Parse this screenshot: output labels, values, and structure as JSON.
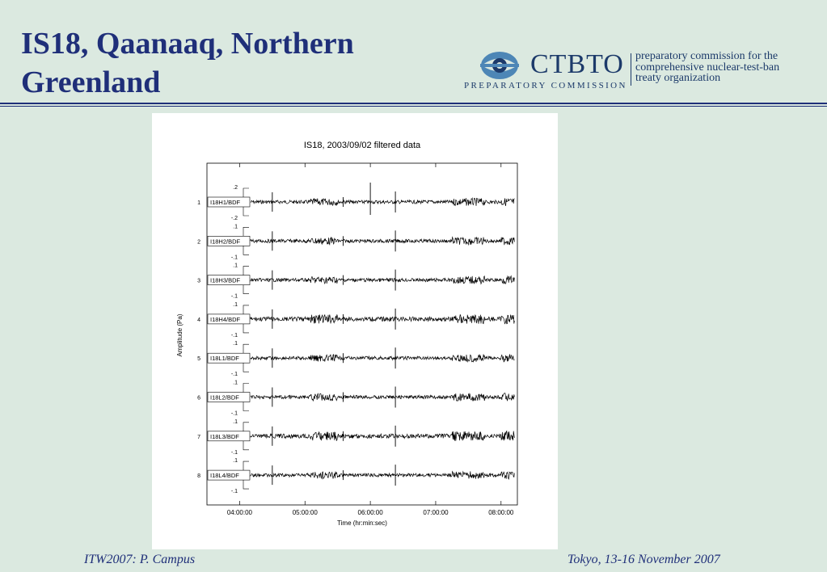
{
  "slide": {
    "title": "IS18, Qaanaaq, Northern\nGreenland",
    "footer_left": "ITW2007: P. Campus",
    "footer_right": "Tokyo, 13-16 November 2007"
  },
  "logo": {
    "name": "CTBTO",
    "subtitle": "PREPARATORY COMMISSION",
    "description": [
      "preparatory commission for the",
      "comprehensive nuclear-test-ban",
      "treaty organization"
    ],
    "color": "#1c3a6a",
    "icon": "ctbto-eye-logo-icon"
  },
  "chart_data": {
    "type": "line",
    "title": "IS18, 2003/09/02 filtered data",
    "xlabel": "Time (hr:min:sec)",
    "ylabel": "Amplitude (Pa)",
    "xticks": [
      "04:00:00",
      "05:00:00",
      "06:00:00",
      "07:00:00",
      "08:00:00"
    ],
    "xlim": [
      "03:30:00",
      "08:15:00"
    ],
    "channels": [
      {
        "index": "1",
        "name": "I18H1/BDF",
        "top": ".2",
        "bottom": "-.2"
      },
      {
        "index": "2",
        "name": "I18H2/BDF",
        "top": ".1",
        "bottom": "-.1"
      },
      {
        "index": "3",
        "name": "I18H3/BDF",
        "top": ".1",
        "bottom": "-.1"
      },
      {
        "index": "4",
        "name": "I18H4/BDF",
        "top": ".1",
        "bottom": "-.1"
      },
      {
        "index": "5",
        "name": "I18L1/BDF",
        "top": ".1",
        "bottom": "-.1"
      },
      {
        "index": "6",
        "name": "I18L2/BDF",
        "top": ".1",
        "bottom": "-.1"
      },
      {
        "index": "7",
        "name": "I18L3/BDF",
        "top": ".1",
        "bottom": "-.1"
      },
      {
        "index": "8",
        "name": "I18L4/BDF",
        "top": ".1",
        "bottom": "-.1"
      }
    ]
  }
}
